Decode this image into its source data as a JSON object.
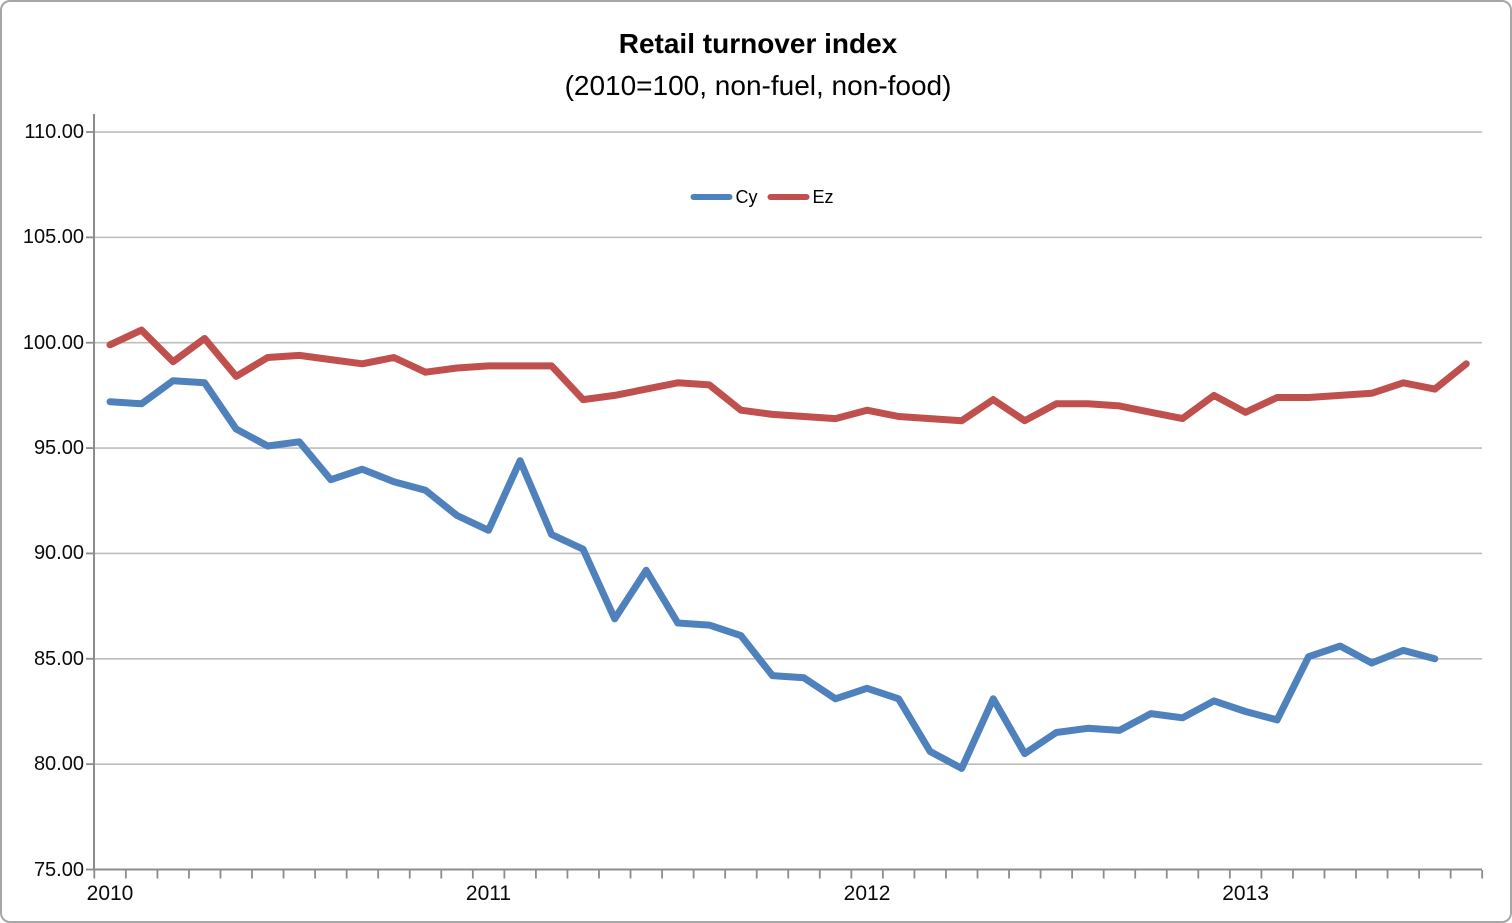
{
  "chart_data": {
    "type": "line",
    "title": "Retail turnover index",
    "subtitle": "(2010=100, non-fuel, non-food)",
    "x_start": "2010-01",
    "x_unit": "month",
    "x_tick_labels": [
      "2010",
      "2011",
      "2012",
      "2013"
    ],
    "x_tick_month_index": [
      0,
      12,
      24,
      36
    ],
    "ylim": [
      75,
      110
    ],
    "y_tick_step": 5,
    "y_tick_labels": [
      "75.00",
      "80.00",
      "85.00",
      "90.00",
      "95.00",
      "100.00",
      "105.00",
      "110.00"
    ],
    "grid": true,
    "legend_position": "top-center-inside",
    "series": [
      {
        "name": "Cy",
        "color": "#4F81BD",
        "values": [
          97.2,
          97.1,
          98.2,
          98.1,
          95.9,
          95.1,
          95.3,
          93.5,
          94.0,
          93.4,
          93.0,
          91.8,
          91.1,
          94.4,
          90.9,
          90.2,
          86.9,
          89.2,
          86.7,
          86.6,
          86.1,
          84.2,
          84.1,
          83.1,
          83.6,
          83.1,
          80.6,
          79.8,
          83.1,
          80.5,
          81.5,
          81.7,
          81.6,
          82.4,
          82.2,
          83.0,
          82.5,
          82.1,
          85.1,
          85.6,
          84.8,
          85.4,
          85.0
        ]
      },
      {
        "name": "Ez",
        "color": "#C0504D",
        "values": [
          99.9,
          100.6,
          99.1,
          100.2,
          98.4,
          99.3,
          99.4,
          99.2,
          99.0,
          99.3,
          98.6,
          98.8,
          98.9,
          98.9,
          98.9,
          97.3,
          97.5,
          97.8,
          98.1,
          98.0,
          96.8,
          96.6,
          96.5,
          96.4,
          96.8,
          96.5,
          96.4,
          96.3,
          97.3,
          96.3,
          97.1,
          97.1,
          97.0,
          96.7,
          96.4,
          97.5,
          96.7,
          97.4,
          97.4,
          97.5,
          97.6,
          98.1,
          97.8,
          99.0
        ]
      }
    ],
    "colors": {
      "gridline": "#BDBDBD",
      "axis": "#8C8C8C",
      "text": "#0a0a0a",
      "background": "#FFFFFF",
      "frame_border": "#A6A6A6"
    }
  }
}
